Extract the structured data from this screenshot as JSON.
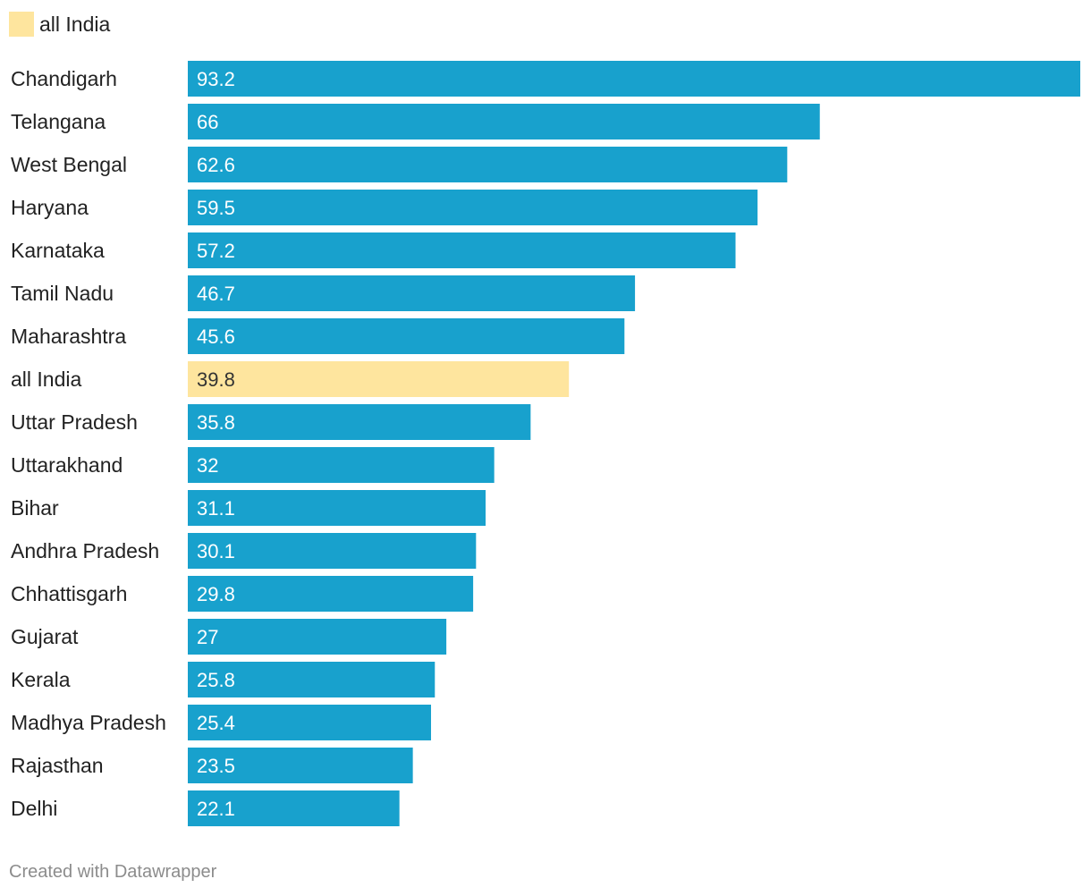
{
  "legend": {
    "label": "all India",
    "color": "#fee59e"
  },
  "footer": {
    "credit": "Created with Datawrapper"
  },
  "colors": {
    "bar": "#18a1cd",
    "highlight": "#fee59e",
    "value_on_bar": "#ffffff",
    "value_on_highlight": "#333333"
  },
  "chart_data": {
    "type": "bar",
    "orientation": "horizontal",
    "categories": [
      "Chandigarh",
      "Telangana",
      "West Bengal",
      "Haryana",
      "Karnataka",
      "Tamil Nadu",
      "Maharashtra",
      "all India",
      "Uttar Pradesh",
      "Uttarakhand",
      "Bihar",
      "Andhra Pradesh",
      "Chhattisgarh",
      "Gujarat",
      "Kerala",
      "Madhya Pradesh",
      "Rajasthan",
      "Delhi"
    ],
    "values": [
      93.2,
      66,
      62.6,
      59.5,
      57.2,
      46.7,
      45.6,
      39.8,
      35.8,
      32,
      31.1,
      30.1,
      29.8,
      27,
      25.8,
      25.4,
      23.5,
      22.1
    ],
    "value_labels": [
      "93.2",
      "66",
      "62.6",
      "59.5",
      "57.2",
      "46.7",
      "45.6",
      "39.8",
      "35.8",
      "32",
      "31.1",
      "30.1",
      "29.8",
      "27",
      "25.8",
      "25.4",
      "23.5",
      "22.1"
    ],
    "highlight": [
      "all India"
    ],
    "xlim": [
      0,
      93.2
    ],
    "grid": false,
    "legend_position": "top-left"
  }
}
